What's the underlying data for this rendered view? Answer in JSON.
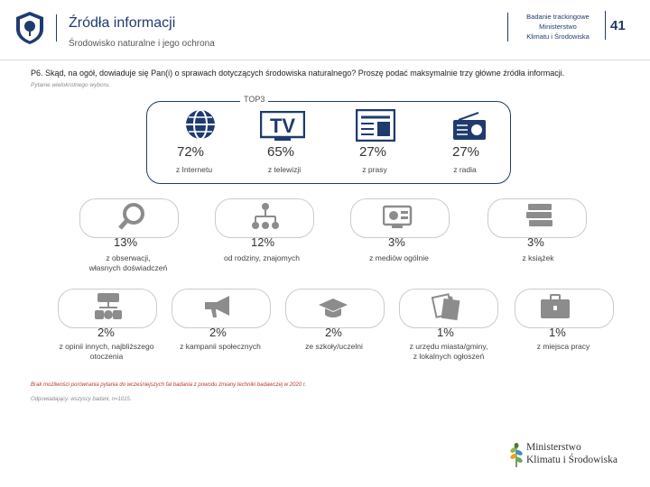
{
  "header": {
    "title": "Źródła informacji",
    "subtitle": "Środowisko naturalne i jego ochrona",
    "study_line1": "Badanie trackingowe",
    "study_line2": "Ministerstwo",
    "study_line3": "Klimatu i Środowiska",
    "page_number": "41"
  },
  "question": {
    "text": "P6. Skąd, na ogół, dowiaduje się Pan(i) o sprawach dotyczących środowiska naturalnego? Proszę podać maksymalnie trzy główne źródła informacji.",
    "note": "Pytanie wielokrotnego wyboru."
  },
  "top3_label": "TOP3",
  "top3": [
    {
      "pct": "72%",
      "label": "z Internetu",
      "icon": "globe-icon"
    },
    {
      "pct": "65%",
      "label": "z telewizji",
      "icon": "tv-icon"
    },
    {
      "pct": "27%",
      "label": "z prasy",
      "icon": "newspaper-icon"
    },
    {
      "pct": "27%",
      "label": "z radia",
      "icon": "radio-icon"
    }
  ],
  "row2": [
    {
      "pct": "13%",
      "label1": "z obserwacji,",
      "label2": "własnych doświadczeń",
      "icon": "magnifier-icon"
    },
    {
      "pct": "12%",
      "label1": "od rodziny, znajomych",
      "label2": "",
      "icon": "people-network-icon"
    },
    {
      "pct": "3%",
      "label1": "z mediów ogólnie",
      "label2": "",
      "icon": "media-icon"
    },
    {
      "pct": "3%",
      "label1": "z książek",
      "label2": "",
      "icon": "books-icon"
    }
  ],
  "row3": [
    {
      "pct": "2%",
      "label1": "z opinii innych, najbliższego",
      "label2": "otoczenia",
      "icon": "network-icon"
    },
    {
      "pct": "2%",
      "label1": "z kampanii społecznych",
      "label2": "",
      "icon": "megaphone-icon"
    },
    {
      "pct": "2%",
      "label1": "ze szkoły/uczelni",
      "label2": "",
      "icon": "graduation-cap-icon"
    },
    {
      "pct": "1%",
      "label1": "z urzędu miasta/gminy,",
      "label2": "z lokalnych ogłoszeń",
      "icon": "notice-icon"
    },
    {
      "pct": "1%",
      "label1": "z miejsca pracy",
      "label2": "",
      "icon": "briefcase-icon"
    }
  ],
  "footnote": "Brak możliwości porównania pytania do wcześniejszych fal badania z powodu zmiany techniki badawczej w 2020 r.",
  "base_note": "Odpowiadający: wszyscy badani, n=1015.",
  "ministry": {
    "line1": "Ministerstwo",
    "line2": "Klimatu i Środowiska"
  },
  "colors": {
    "accent": "#1f3b6e",
    "icon_gray": "#8c8c8c",
    "footnote": "#c0392b"
  }
}
